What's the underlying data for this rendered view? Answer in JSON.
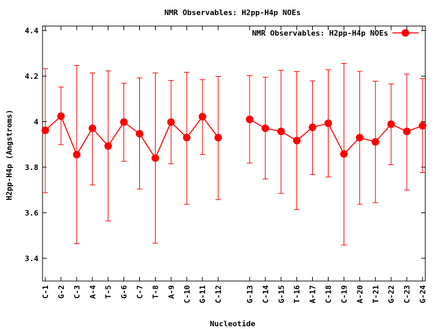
{
  "chart_data": {
    "type": "line",
    "title": "NMR Observables: H2pp-H4p NOEs",
    "xlabel": "Nucleotide",
    "ylabel": "H2pp-H4p (Angstroms)",
    "ylim": [
      3.3,
      4.42
    ],
    "yticks": [
      3.4,
      3.6,
      3.8,
      4.0,
      4.2,
      4.4
    ],
    "ytick_labels": [
      "3.4",
      "3.6",
      "3.8",
      "4",
      "4.2",
      "4.4"
    ],
    "legend_position": "top-right",
    "grid": false,
    "color": "#ff0000",
    "categories": [
      "C-1",
      "G-2",
      "C-3",
      "A-4",
      "T-5",
      "G-6",
      "C-7",
      "T-8",
      "A-9",
      "C-10",
      "G-11",
      "C-12",
      "",
      "G-13",
      "C-14",
      "G-15",
      "T-16",
      "A-17",
      "C-18",
      "C-19",
      "A-20",
      "T-21",
      "G-22",
      "C-23",
      "G-24"
    ],
    "series": [
      {
        "name": "NMR Observables: H2pp-H4p NOEs",
        "values": [
          3.962,
          4.024,
          3.855,
          3.971,
          3.893,
          3.998,
          3.947,
          3.84,
          3.998,
          3.93,
          4.022,
          3.93,
          null,
          4.01,
          3.971,
          3.957,
          3.917,
          3.975,
          3.993,
          3.858,
          3.93,
          3.911,
          3.989,
          3.957,
          3.982
        ],
        "err_low": [
          3.688,
          3.899,
          3.464,
          3.722,
          3.564,
          3.826,
          3.704,
          3.466,
          3.815,
          3.637,
          3.856,
          3.658,
          null,
          3.818,
          3.748,
          3.685,
          3.614,
          3.768,
          3.757,
          3.458,
          3.637,
          3.644,
          3.811,
          3.7,
          3.777
        ],
        "err_high": [
          4.233,
          4.152,
          4.247,
          4.214,
          4.223,
          4.169,
          4.192,
          4.214,
          4.181,
          4.217,
          4.185,
          4.199,
          null,
          4.202,
          4.195,
          4.226,
          4.22,
          4.179,
          4.228,
          4.256,
          4.221,
          4.178,
          4.166,
          4.209,
          4.189
        ]
      }
    ]
  }
}
